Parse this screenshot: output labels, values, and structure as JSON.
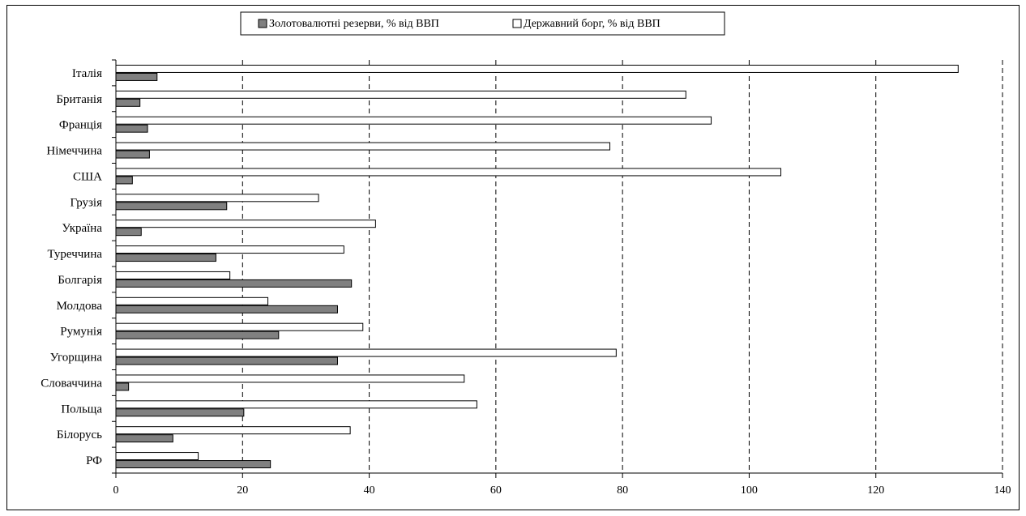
{
  "chart_data": {
    "type": "bar",
    "orientation": "horizontal",
    "categories": [
      "Італія",
      "Британія",
      "Франція",
      "Німеччина",
      "США",
      "Грузія",
      "Україна",
      "Туреччина",
      "Болгарія",
      "Молдова",
      "Румунія",
      "Угорщина",
      "Словаччина",
      "Польща",
      "Білорусь",
      "РФ"
    ],
    "series": [
      {
        "name": "Золотовалютні резерви, % від ВВП",
        "color": "#808080",
        "values": [
          6.5,
          3.8,
          5.0,
          5.3,
          2.6,
          17.5,
          4.0,
          15.8,
          37.2,
          35.0,
          25.7,
          35.0,
          2.0,
          20.2,
          9.0,
          24.4
        ]
      },
      {
        "name": "Державний борг, % від ВВП",
        "color": "#ffffff",
        "values": [
          133,
          90,
          94,
          78,
          105,
          32,
          41,
          36,
          18,
          24,
          39,
          79,
          55,
          57,
          37,
          13
        ]
      }
    ],
    "xlim": [
      0,
      140
    ],
    "xticks": [
      "0",
      "20",
      "40",
      "60",
      "80",
      "100",
      "120",
      "140"
    ],
    "grid": "vertical-dashed",
    "legend_position": "top-center"
  }
}
